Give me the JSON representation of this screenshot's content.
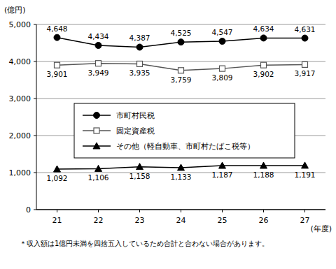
{
  "chart_data": {
    "type": "line",
    "ylabel": "(億円)",
    "xlabel": "(年度)",
    "annotations": [
      "＊収入額は1億円未満を四捨五入しているため合計と合わない場合があります。"
    ],
    "categories": [
      "21",
      "22",
      "23",
      "24",
      "25",
      "26",
      "27"
    ],
    "series": [
      {
        "name": "市町村民税",
        "color": "#000000",
        "marker": "circle",
        "values": [
          4648,
          4434,
          4387,
          4525,
          4547,
          4634,
          4631
        ],
        "value_labels": [
          "4,648",
          "4,434",
          "4,387",
          "4,525",
          "4,547",
          "4,634",
          "4,631"
        ]
      },
      {
        "name": "固定資産税",
        "color": "#555555",
        "marker": "open-square",
        "values": [
          3901,
          3949,
          3935,
          3759,
          3809,
          3902,
          3917
        ],
        "value_labels": [
          "3,901",
          "3,949",
          "3,935",
          "3,759",
          "3,809",
          "3,902",
          "3,917"
        ]
      },
      {
        "name": "その他（軽自動車、市町村たばこ税等）",
        "color": "#000000",
        "marker": "triangle",
        "values": [
          1092,
          1106,
          1158,
          1133,
          1187,
          1188,
          1191
        ],
        "value_labels": [
          "1,092",
          "1,106",
          "1,158",
          "1,133",
          "1,187",
          "1,188",
          "1,191"
        ]
      }
    ],
    "ylim": [
      0,
      5000
    ],
    "yticks": [
      0,
      {
        "value": 1000,
        "label": "1,000"
      },
      {
        "value": 2000,
        "label": "2,000"
      },
      {
        "value": 3000,
        "label": "3,000"
      },
      {
        "value": 4000,
        "label": "4,000"
      },
      {
        "value": 5000,
        "label": "5,000"
      }
    ],
    "grid": true,
    "legend": "center",
    "data_labels": true
  }
}
